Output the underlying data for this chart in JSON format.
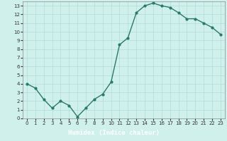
{
  "x": [
    0,
    1,
    2,
    3,
    4,
    5,
    6,
    7,
    8,
    9,
    10,
    11,
    12,
    13,
    14,
    15,
    16,
    17,
    18,
    19,
    20,
    21,
    22,
    23
  ],
  "y": [
    4.0,
    3.5,
    2.2,
    1.2,
    2.0,
    1.5,
    0.2,
    1.2,
    2.2,
    2.8,
    4.2,
    8.5,
    9.3,
    12.2,
    13.0,
    13.3,
    13.0,
    12.8,
    12.2,
    11.5,
    11.5,
    11.0,
    10.5,
    9.7
  ],
  "line_color": "#2a7a6a",
  "marker": "o",
  "marker_size": 2.0,
  "bg_color": "#cff0eb",
  "grid_color": "#b0ddd8",
  "xlabel": "Humidex (Indice chaleur)",
  "xlim": [
    -0.5,
    23.5
  ],
  "ylim": [
    0,
    13.5
  ],
  "xticks": [
    0,
    1,
    2,
    3,
    4,
    5,
    6,
    7,
    8,
    9,
    10,
    11,
    12,
    13,
    14,
    15,
    16,
    17,
    18,
    19,
    20,
    21,
    22,
    23
  ],
  "yticks": [
    0,
    1,
    2,
    3,
    4,
    5,
    6,
    7,
    8,
    9,
    10,
    11,
    12,
    13
  ],
  "tick_fontsize": 5.0,
  "xlabel_fontsize": 6.5,
  "line_width": 1.0,
  "bottom_bar_color": "#3a6060",
  "bottom_bar_height": 0.13
}
